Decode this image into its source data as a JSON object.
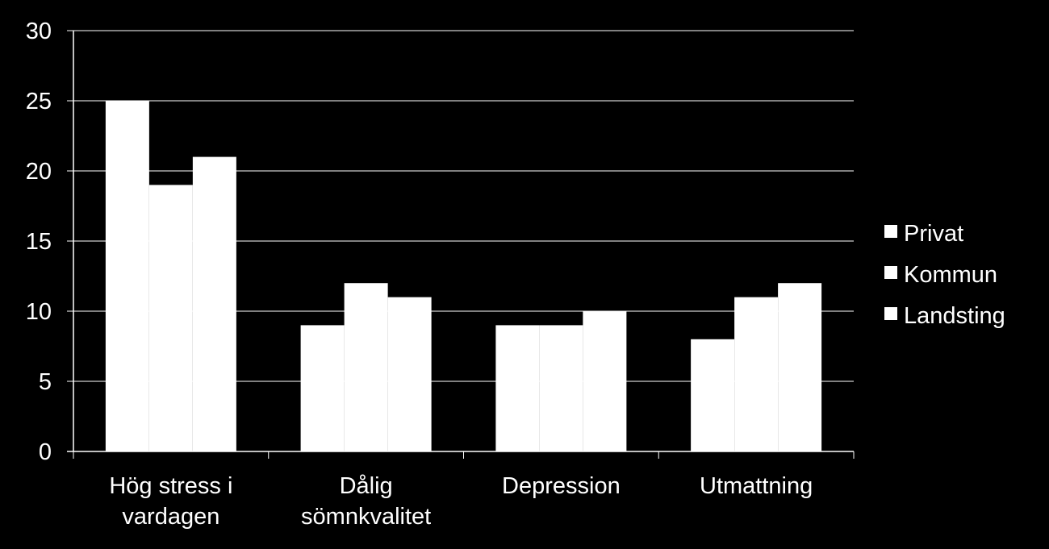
{
  "chart_data": {
    "type": "bar",
    "categories": [
      [
        "Hög stress i",
        "vardagen"
      ],
      [
        "Dålig",
        "sömnkvalitet"
      ],
      [
        "Depression"
      ],
      [
        "Utmattning"
      ]
    ],
    "series": [
      {
        "name": "Privat",
        "values": [
          25,
          9,
          9,
          8
        ]
      },
      {
        "name": "Kommun",
        "values": [
          19,
          12,
          9,
          11
        ]
      },
      {
        "name": "Landsting",
        "values": [
          21,
          11,
          10,
          12
        ]
      }
    ],
    "ylim": [
      0,
      30
    ],
    "yticks": [
      0,
      5,
      10,
      15,
      20,
      25,
      30
    ],
    "grid": true,
    "legend": "right",
    "colors": {
      "background": "#000000",
      "bars": "#ffffff",
      "text": "#ffffff",
      "grid": "#ffffff"
    }
  }
}
